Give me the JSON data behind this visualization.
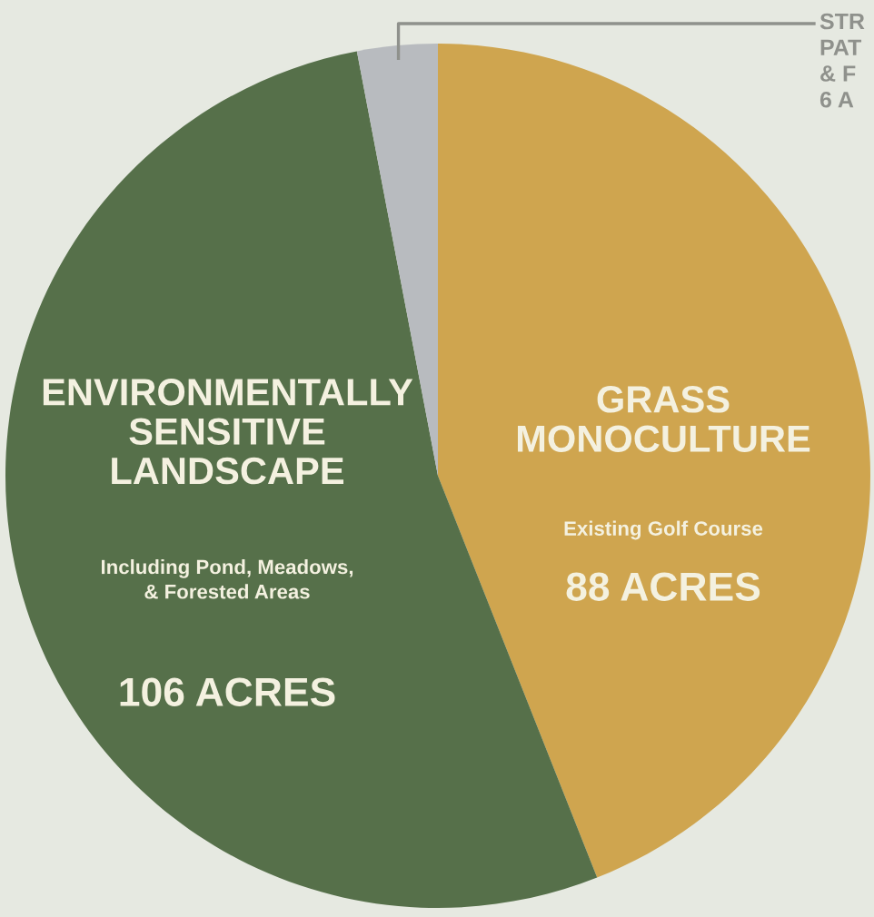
{
  "chart_data": {
    "type": "pie",
    "categories": [
      "GRASS\nMONOCULTURE",
      "ENVIRONMENTALLY\nSENSITIVE\nLANDSCAPE",
      "STR\nPAT\n& F"
    ],
    "values": [
      88,
      106,
      6
    ],
    "colors": [
      "#cfa54f",
      "#56704a",
      "#b8bbbf"
    ],
    "value_labels": [
      "88 ACRES",
      "106 ACRES",
      "6 A"
    ],
    "annotations": [
      "Existing Golf Course",
      "Including Pond, Meadows,\n& Forested Areas"
    ]
  }
}
